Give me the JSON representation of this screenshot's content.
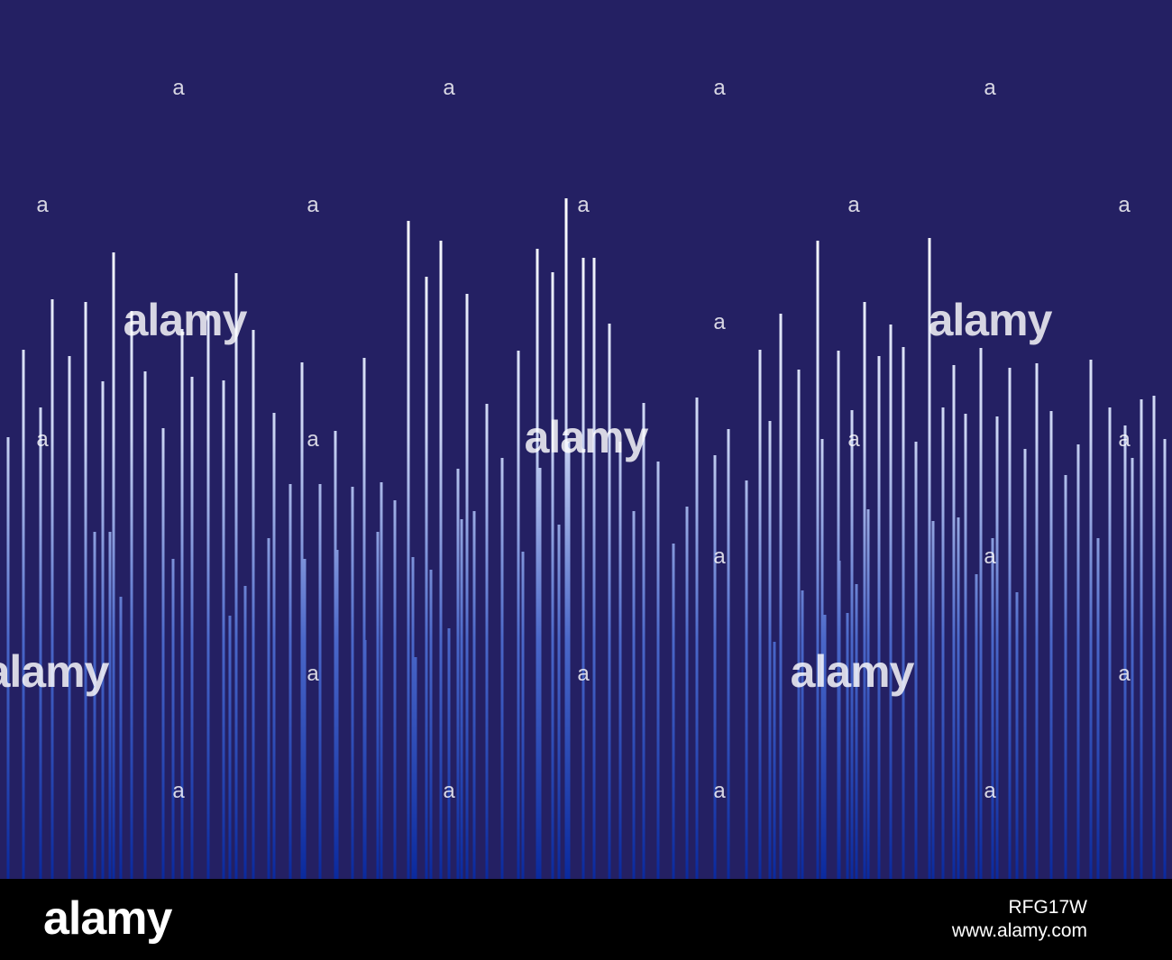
{
  "image": {
    "background_color": "#242063",
    "line_color_top": "#ffffff",
    "line_color_bottom": "#0a2a9e",
    "watermark_color": "#ffffff",
    "watermark_text": "alamy",
    "watermark_small_text": "a"
  },
  "footer": {
    "logo": "alamy",
    "image_id": "RFG17W",
    "site": "www.alamy.com"
  }
}
